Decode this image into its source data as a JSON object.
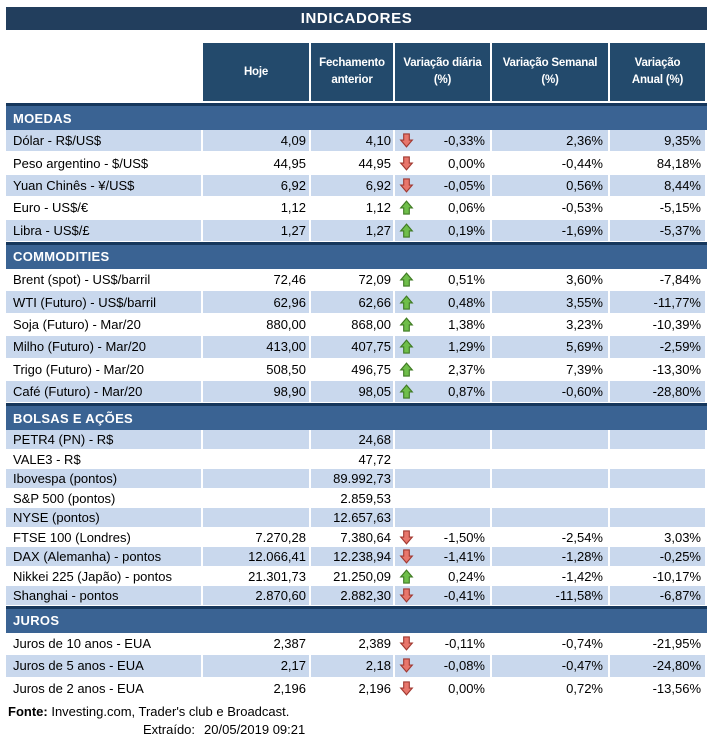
{
  "title": "INDICADORES",
  "columns": [
    "Hoje",
    "Fechamento\nanterior",
    "Variação diária\n(%)",
    "Variação Semanal\n(%)",
    "Variação\nAnual (%)"
  ],
  "sections": [
    {
      "key": "moedas",
      "name": "MOEDAS",
      "first_shaded": true,
      "rows": [
        {
          "label": "Dólar - R$/US$",
          "hoje": "4,09",
          "fechamento": "4,10",
          "arrow": "down",
          "diaria": "-0,33%",
          "semanal": "2,36%",
          "anual": "9,35%"
        },
        {
          "label": "Peso argentino - $/US$",
          "hoje": "44,95",
          "fechamento": "44,95",
          "arrow": "down",
          "diaria": "0,00%",
          "semanal": "-0,44%",
          "anual": "84,18%"
        },
        {
          "label": "Yuan Chinês - ¥/US$",
          "hoje": "6,92",
          "fechamento": "6,92",
          "arrow": "down",
          "diaria": "-0,05%",
          "semanal": "0,56%",
          "anual": "8,44%"
        },
        {
          "label": "Euro - US$/€",
          "hoje": "1,12",
          "fechamento": "1,12",
          "arrow": "up",
          "diaria": "0,06%",
          "semanal": "-0,53%",
          "anual": "-5,15%"
        },
        {
          "label": "Libra - US$/£",
          "hoje": "1,27",
          "fechamento": "1,27",
          "arrow": "up",
          "diaria": "0,19%",
          "semanal": "-1,69%",
          "anual": "-5,37%"
        }
      ]
    },
    {
      "key": "commodities",
      "name": "COMMODITIES",
      "first_shaded": false,
      "rows": [
        {
          "label": "Brent (spot) - US$/barril",
          "hoje": "72,46",
          "fechamento": "72,09",
          "arrow": "up",
          "diaria": "0,51%",
          "semanal": "3,60%",
          "anual": "-7,84%"
        },
        {
          "label": "WTI (Futuro) - US$/barril",
          "hoje": "62,96",
          "fechamento": "62,66",
          "arrow": "up",
          "diaria": "0,48%",
          "semanal": "3,55%",
          "anual": "-11,77%"
        },
        {
          "label": "Soja (Futuro) - Mar/20",
          "hoje": "880,00",
          "fechamento": "868,00",
          "arrow": "up",
          "diaria": "1,38%",
          "semanal": "3,23%",
          "anual": "-10,39%"
        },
        {
          "label": "Milho (Futuro) - Mar/20",
          "hoje": "413,00",
          "fechamento": "407,75",
          "arrow": "up",
          "diaria": "1,29%",
          "semanal": "5,69%",
          "anual": "-2,59%"
        },
        {
          "label": "Trigo (Futuro) - Mar/20",
          "hoje": "508,50",
          "fechamento": "496,75",
          "arrow": "up",
          "diaria": "2,37%",
          "semanal": "7,39%",
          "anual": "-13,30%"
        },
        {
          "label": "Café (Futuro) - Mar/20",
          "hoje": "98,90",
          "fechamento": "98,05",
          "arrow": "up",
          "diaria": "0,87%",
          "semanal": "-0,60%",
          "anual": "-28,80%"
        }
      ]
    },
    {
      "key": "bolsas",
      "name": "BOLSAS E AÇÕES",
      "first_shaded": true,
      "rows": [
        {
          "label": "PETR4 (PN) - R$",
          "hoje": "",
          "fechamento": "24,68",
          "arrow": null,
          "diaria": "",
          "semanal": "",
          "anual": ""
        },
        {
          "label": "VALE3 - R$",
          "hoje": "",
          "fechamento": "47,72",
          "arrow": null,
          "diaria": "",
          "semanal": "",
          "anual": ""
        },
        {
          "label": "Ibovespa (pontos)",
          "hoje": "",
          "fechamento": "89.992,73",
          "arrow": null,
          "diaria": "",
          "semanal": "",
          "anual": ""
        },
        {
          "label": "S&P 500 (pontos)",
          "hoje": "",
          "fechamento": "2.859,53",
          "arrow": null,
          "diaria": "",
          "semanal": "",
          "anual": ""
        },
        {
          "label": "NYSE (pontos)",
          "hoje": "",
          "fechamento": "12.657,63",
          "arrow": null,
          "diaria": "",
          "semanal": "",
          "anual": ""
        },
        {
          "label": "FTSE 100 (Londres)",
          "hoje": "7.270,28",
          "fechamento": "7.380,64",
          "arrow": "down",
          "diaria": "-1,50%",
          "semanal": "-2,54%",
          "anual": "3,03%"
        },
        {
          "label": "DAX (Alemanha) - pontos",
          "hoje": "12.066,41",
          "fechamento": "12.238,94",
          "arrow": "down",
          "diaria": "-1,41%",
          "semanal": "-1,28%",
          "anual": "-0,25%"
        },
        {
          "label": "Nikkei 225 (Japão) - pontos",
          "hoje": "21.301,73",
          "fechamento": "21.250,09",
          "arrow": "up",
          "diaria": "0,24%",
          "semanal": "-1,42%",
          "anual": "-10,17%"
        },
        {
          "label": "Shanghai - pontos",
          "hoje": "2.870,60",
          "fechamento": "2.882,30",
          "arrow": "down",
          "diaria": "-0,41%",
          "semanal": "-11,58%",
          "anual": "-6,87%"
        }
      ]
    },
    {
      "key": "juros",
      "name": "JUROS",
      "first_shaded": false,
      "rows": [
        {
          "label": "Juros de 10 anos - EUA",
          "hoje": "2,387",
          "fechamento": "2,389",
          "arrow": "down",
          "diaria": "-0,11%",
          "semanal": "-0,74%",
          "anual": "-21,95%"
        },
        {
          "label": "Juros de 5 anos - EUA",
          "hoje": "2,17",
          "fechamento": "2,18",
          "arrow": "down",
          "diaria": "-0,08%",
          "semanal": "-0,47%",
          "anual": "-24,80%"
        },
        {
          "label": "Juros de 2 anos - EUA",
          "hoje": "2,196",
          "fechamento": "2,196",
          "arrow": "down",
          "diaria": "0,00%",
          "semanal": "0,72%",
          "anual": "-13,56%"
        }
      ]
    }
  ],
  "footer": {
    "fonte_label": "Fonte:",
    "fonte_text": " Investing.com, Trader's club e Broadcast.",
    "extraido_label": "Extraído:",
    "extraido_value": "20/05/2019 09:21"
  },
  "icons": {
    "up": "up-arrow-icon",
    "down": "down-arrow-icon"
  },
  "colors": {
    "title_bar": "#223E5D",
    "header_cell": "#234A6C",
    "section_bar": "#3A6393",
    "section_border": "#16375C",
    "row_shade": "#C9D8ED",
    "arrow_up_fill": "#6FBE4A",
    "arrow_up_stroke": "#3F7A23",
    "arrow_down_fill": "#E8766C",
    "arrow_down_stroke": "#A13931"
  }
}
